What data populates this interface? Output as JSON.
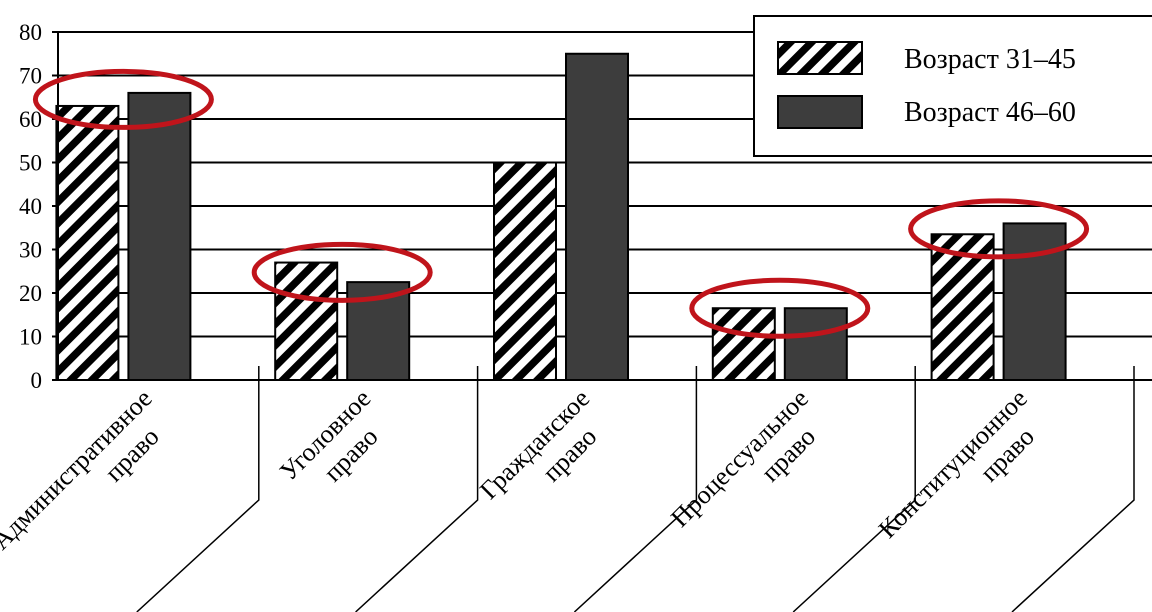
{
  "chart_data": {
    "type": "bar",
    "categories": [
      [
        "Административное",
        "право"
      ],
      [
        "Уголовное",
        "право"
      ],
      [
        "Гражданское",
        "право"
      ],
      [
        "Процессуальное",
        "право"
      ],
      [
        "Конституционное",
        "право"
      ]
    ],
    "series": [
      {
        "name": "Возраст 31–45",
        "values": [
          63,
          27,
          50,
          16.5,
          33.5
        ],
        "pattern": "diagonal-hatch"
      },
      {
        "name": "Возраст 46–60",
        "values": [
          66,
          22.5,
          75,
          16.5,
          36
        ],
        "color": "#3d3d3d"
      }
    ],
    "yticks": [
      "0",
      "10",
      "20",
      "30",
      "40",
      "50",
      "60",
      "70",
      "80"
    ],
    "ylim": [
      0,
      80
    ],
    "grid": true,
    "legend_position": "top-right",
    "highlighted_categories": [
      0,
      1,
      3,
      4
    ],
    "highlight_color": "#c0141b"
  }
}
